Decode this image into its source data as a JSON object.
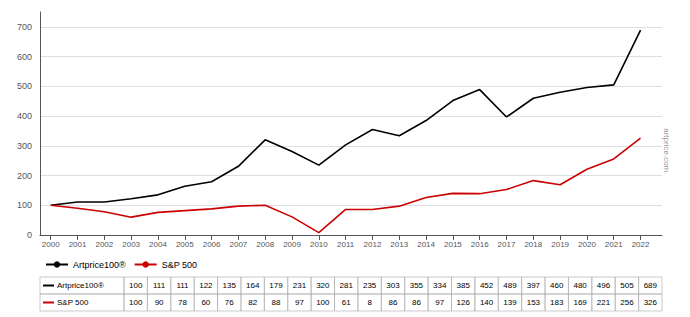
{
  "chart_data": {
    "type": "line",
    "x": [
      2000,
      2001,
      2002,
      2003,
      2004,
      2005,
      2006,
      2007,
      2008,
      2009,
      2010,
      2011,
      2012,
      2013,
      2014,
      2015,
      2016,
      2017,
      2018,
      2019,
      2020,
      2021,
      2022
    ],
    "xlim": [
      1999.6,
      2022.8
    ],
    "xticks": [
      2000,
      2001,
      2002,
      2003,
      2004,
      2005,
      2006,
      2007,
      2008,
      2009,
      2010,
      2011,
      2012,
      2013,
      2014,
      2015,
      2016,
      2017,
      2018,
      2019,
      2020,
      2021,
      2022
    ],
    "ylim": [
      0,
      750
    ],
    "yticks": [
      0,
      100,
      200,
      300,
      400,
      500,
      600,
      700
    ],
    "grid": true,
    "legend": "bottom left",
    "series": [
      {
        "name": "Artprice100®",
        "color": "#000000",
        "values": [
          100,
          111,
          111,
          122,
          135,
          164,
          179,
          231,
          320,
          281,
          235,
          303,
          355,
          334,
          385,
          452,
          489,
          397,
          460,
          480,
          496,
          505,
          689
        ]
      },
      {
        "name": "S&P 500",
        "color": "#cc0000",
        "values": [
          100,
          90,
          78,
          60,
          76,
          82,
          88,
          97,
          100,
          61,
          8,
          86,
          86,
          97,
          126,
          140,
          139,
          153,
          183,
          169,
          221,
          256,
          326
        ]
      }
    ],
    "annotations": [
      {
        "text": "artprice.com"
      }
    ]
  }
}
